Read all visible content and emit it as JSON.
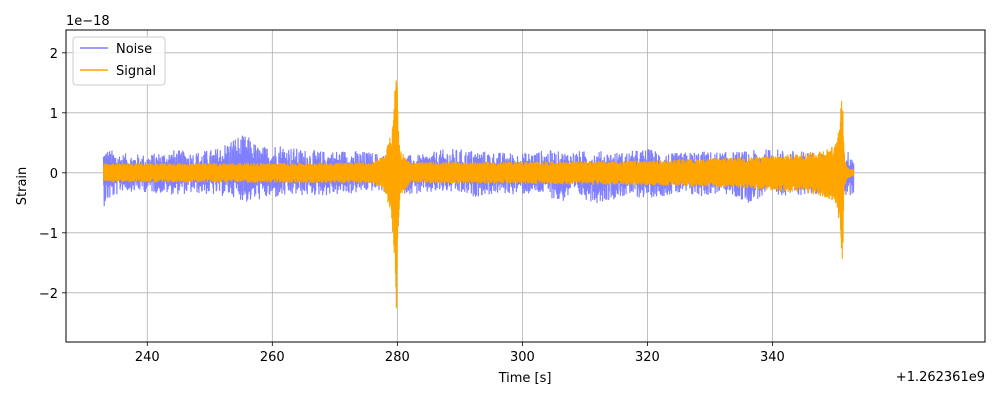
{
  "chart_data": {
    "type": "line",
    "xlabel": "Time [s]",
    "ylabel": "Strain",
    "x_offset_label": "+1.262361e9",
    "y_scale_label": "1e−18",
    "xlim": [
      227,
      374
    ],
    "ylim": [
      -2.82,
      2.38
    ],
    "x_ticks": [
      240,
      260,
      280,
      300,
      320,
      340
    ],
    "x_tick_labels": [
      "240",
      "260",
      "280",
      "300",
      "320",
      "340"
    ],
    "y_ticks": [
      -2,
      -1,
      0,
      1,
      2
    ],
    "y_tick_labels": [
      "−2",
      "−1",
      "0",
      "1",
      "2"
    ],
    "grid": true,
    "legend_position": "top-left",
    "colors": {
      "noise": "#7f7fff",
      "signal": "#ffa500"
    },
    "series": [
      {
        "name": "Noise",
        "x_range": [
          233,
          353
        ],
        "envelope": [
          [
            233,
            0.42,
            -0.56
          ],
          [
            236,
            0.32,
            -0.3
          ],
          [
            240,
            0.3,
            -0.32
          ],
          [
            244,
            0.38,
            -0.36
          ],
          [
            248,
            0.35,
            -0.34
          ],
          [
            251,
            0.4,
            -0.38
          ],
          [
            254,
            0.62,
            -0.4
          ],
          [
            256,
            0.62,
            -0.5
          ],
          [
            258,
            0.42,
            -0.45
          ],
          [
            261,
            0.5,
            -0.42
          ],
          [
            264,
            0.4,
            -0.38
          ],
          [
            268,
            0.36,
            -0.38
          ],
          [
            272,
            0.38,
            -0.36
          ],
          [
            276,
            0.34,
            -0.3
          ],
          [
            280,
            0.28,
            -0.34
          ],
          [
            284,
            0.3,
            -0.36
          ],
          [
            288,
            0.4,
            -0.32
          ],
          [
            292,
            0.38,
            -0.4
          ],
          [
            296,
            0.34,
            -0.35
          ],
          [
            300,
            0.33,
            -0.36
          ],
          [
            304,
            0.38,
            -0.36
          ],
          [
            306,
            0.35,
            -0.52
          ],
          [
            308,
            0.36,
            -0.38
          ],
          [
            312,
            0.36,
            -0.5
          ],
          [
            316,
            0.34,
            -0.4
          ],
          [
            320,
            0.4,
            -0.42
          ],
          [
            324,
            0.32,
            -0.36
          ],
          [
            328,
            0.36,
            -0.4
          ],
          [
            332,
            0.34,
            -0.34
          ],
          [
            336,
            0.36,
            -0.5
          ],
          [
            340,
            0.4,
            -0.36
          ],
          [
            344,
            0.36,
            -0.38
          ],
          [
            348,
            0.34,
            -0.36
          ],
          [
            351,
            0.36,
            -0.38
          ],
          [
            353,
            0.36,
            -0.4
          ]
        ]
      },
      {
        "name": "Signal",
        "x_range": [
          233,
          353
        ],
        "envelope": [
          [
            233,
            0.15,
            -0.15
          ],
          [
            260,
            0.16,
            -0.16
          ],
          [
            276,
            0.17,
            -0.17
          ],
          [
            278,
            0.3,
            -0.3
          ],
          [
            279,
            0.65,
            -0.7
          ],
          [
            279.6,
            1.4,
            -1.5
          ],
          [
            279.9,
            2.15,
            -2.6
          ],
          [
            280.1,
            1.0,
            -1.2
          ],
          [
            280.4,
            0.4,
            -0.4
          ],
          [
            282,
            0.17,
            -0.17
          ],
          [
            300,
            0.18,
            -0.18
          ],
          [
            320,
            0.2,
            -0.2
          ],
          [
            335,
            0.25,
            -0.25
          ],
          [
            340,
            0.28,
            -0.3
          ],
          [
            345,
            0.32,
            -0.33
          ],
          [
            348,
            0.38,
            -0.4
          ],
          [
            350,
            0.45,
            -0.48
          ],
          [
            350.8,
            0.8,
            -0.9
          ],
          [
            351.2,
            1.62,
            -1.72
          ],
          [
            351.5,
            0.3,
            -0.3
          ],
          [
            352,
            0.08,
            -0.08
          ],
          [
            353,
            0.06,
            -0.06
          ]
        ]
      }
    ]
  }
}
